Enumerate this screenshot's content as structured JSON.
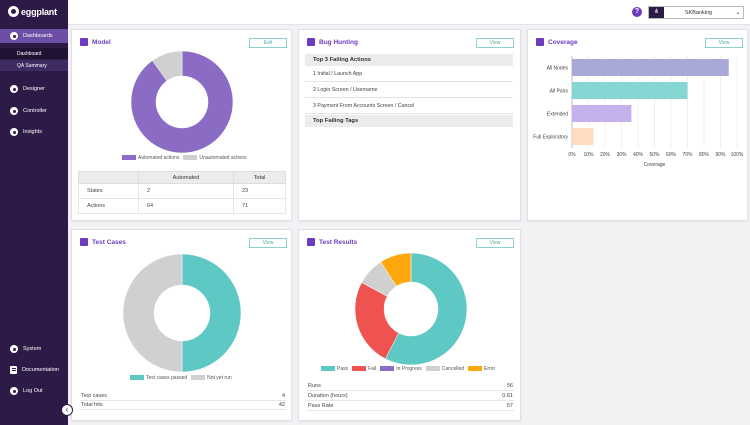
{
  "logo": "eggplant",
  "sidebar": {
    "items": [
      {
        "label": "Dashboards",
        "icon": "dashboard-icon"
      },
      {
        "label": "Designer",
        "icon": "designer-icon"
      },
      {
        "label": "Controller",
        "icon": "controller-icon"
      },
      {
        "label": "Insights",
        "icon": "insights-icon"
      },
      {
        "label": "System",
        "icon": "system-icon"
      },
      {
        "label": "Documentation",
        "icon": "document-icon"
      },
      {
        "label": "Log Out",
        "icon": "logout-icon"
      }
    ],
    "sub_items": [
      {
        "label": "Dashboard"
      },
      {
        "label": "QA Summary"
      }
    ],
    "collapse_glyph": "‹"
  },
  "topbar": {
    "help_glyph": "?",
    "app_select_value": "SKBanking",
    "app_select_chevron": "⌄"
  },
  "colors": {
    "brand": "#2e1a47",
    "accent": "#6d3bbf",
    "teal": "#5ec8c4",
    "red": "#ef5350",
    "purple": "#8b6cc4",
    "gray": "#d0d0d0",
    "orange": "#ffa70f"
  },
  "model": {
    "title": "Model",
    "button": "Edit",
    "legend": [
      "Automated actions",
      "Unautomated actions"
    ],
    "table": {
      "headers": [
        "",
        "Automated",
        "Total"
      ],
      "rows": [
        [
          "States",
          "2",
          "23"
        ],
        [
          "Actions",
          "64",
          "71"
        ]
      ]
    }
  },
  "bug_hunting": {
    "title": "Bug Hunting",
    "button": "View",
    "failing_actions_header": "Top 3 Failing Actions",
    "failing_actions": [
      "1   Initial / Launch App",
      "2   Login Screen / Username",
      "3   Payment From Accounts Screen / Cancel"
    ],
    "failing_tags_header": "Top Failing Tags"
  },
  "coverage": {
    "title": "Coverage",
    "button": "View",
    "xlabel": "Coverage"
  },
  "test_cases": {
    "title": "Test Cases",
    "button": "View",
    "legend": [
      "Test cases passed",
      "Not yet run"
    ],
    "stats": [
      {
        "label": "Test cases",
        "value": "4"
      },
      {
        "label": "Total hits",
        "value": "42"
      }
    ]
  },
  "test_results": {
    "title": "Test Results",
    "button": "View",
    "legend": [
      "Pass",
      "Fail",
      "In Progress",
      "Cancelled",
      "Error"
    ],
    "stats": [
      {
        "label": "Runs",
        "value": "56"
      },
      {
        "label": "Duration (hours)",
        "value": "0.61"
      },
      {
        "label": "Pass Rate",
        "value": "57"
      }
    ]
  },
  "chart_data": [
    {
      "type": "pie",
      "name": "model-donut",
      "categories": [
        "Automated actions",
        "Unautomated actions"
      ],
      "values": [
        64,
        7
      ],
      "colors": [
        "#8b6cc4",
        "#d0d0d0"
      ]
    },
    {
      "type": "bar",
      "name": "coverage-bars",
      "orientation": "horizontal",
      "categories": [
        "All Nodes",
        "All Pairs",
        "Extended",
        "Full Exploratory"
      ],
      "values": [
        95,
        70,
        36,
        13
      ],
      "colors": [
        "#a9a9d8",
        "#86d6d3",
        "#c4b1ec",
        "#ffdcc0"
      ],
      "xlabel": "Coverage",
      "xlim": [
        0,
        100
      ],
      "xticks": [
        "0%",
        "10%",
        "20%",
        "30%",
        "40%",
        "50%",
        "60%",
        "70%",
        "80%",
        "90%",
        "100%"
      ],
      "grid": true
    },
    {
      "type": "pie",
      "name": "test-cases-donut",
      "categories": [
        "Test cases passed",
        "Not yet run"
      ],
      "values": [
        50,
        50
      ],
      "colors": [
        "#5ec8c4",
        "#d0d0d0"
      ]
    },
    {
      "type": "pie",
      "name": "test-results-donut",
      "categories": [
        "Pass",
        "Fail",
        "In Progress",
        "Cancelled",
        "Error"
      ],
      "values": [
        57,
        25,
        0,
        8,
        9
      ],
      "colors": [
        "#5ec8c4",
        "#ef5350",
        "#8b6cc4",
        "#d0d0d0",
        "#ffa70f"
      ]
    }
  ]
}
